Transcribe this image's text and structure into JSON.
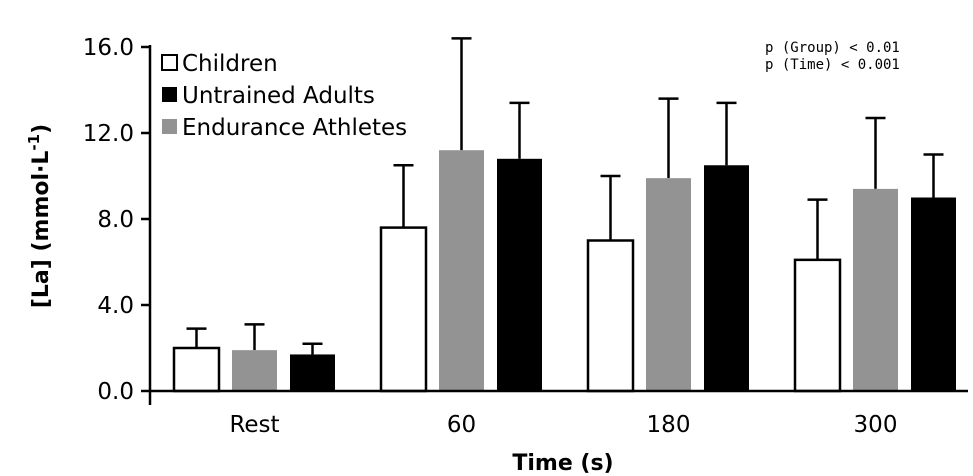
{
  "chart_data": {
    "type": "bar",
    "categories": [
      "Rest",
      "60",
      "180",
      "300"
    ],
    "series": [
      {
        "name": "Children",
        "color": "#ffffff",
        "values": [
          2.0,
          7.6,
          7.0,
          6.1
        ],
        "errors": [
          0.9,
          2.9,
          3.0,
          2.8
        ]
      },
      {
        "name": "Endurance Athletes",
        "color": "#939393",
        "values": [
          1.9,
          11.2,
          9.9,
          9.4
        ],
        "errors": [
          1.2,
          5.2,
          3.7,
          3.3
        ]
      },
      {
        "name": "Untrained Adults",
        "color": "#000000",
        "values": [
          1.7,
          10.8,
          10.5,
          9.0
        ],
        "errors": [
          0.5,
          2.6,
          2.9,
          2.0
        ]
      }
    ],
    "legend_order": [
      "Children",
      "Untrained Adults",
      "Endurance Athletes"
    ],
    "ylabel_main": "[La] (mmol·L",
    "ylabel_sup": "-1",
    "ylabel_close": ")",
    "xlabel": "Time (s)",
    "ylim": [
      0,
      16
    ],
    "yticks": [
      0,
      4,
      8,
      12,
      16
    ],
    "ytick_labels": [
      "0.0",
      "4.0",
      "8.0",
      "12.0",
      "16.0"
    ],
    "legend_position": "top-left",
    "grid": false,
    "annotations": [
      "p (Group) < 0.01",
      "p (Time) < 0.001"
    ]
  }
}
